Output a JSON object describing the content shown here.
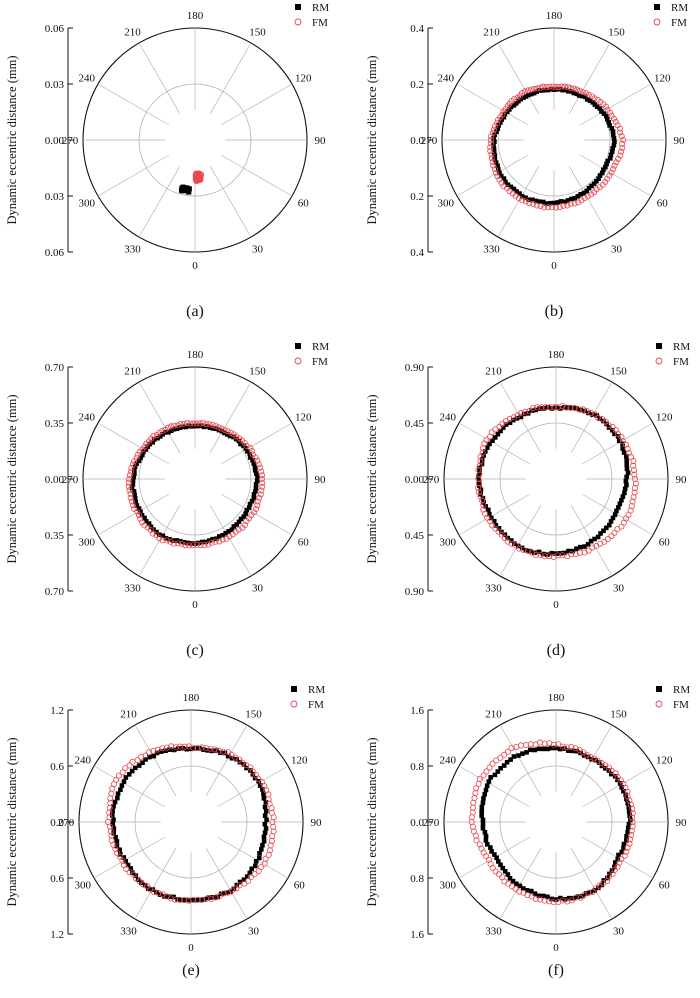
{
  "figure": {
    "legend_rm": "RM",
    "legend_fm": "FM",
    "rm_color": "#000000",
    "fm_color": "#e8474d",
    "ring_color": "#b4b4b4",
    "axis_color": "#111111"
  },
  "chart_data": [
    {
      "type": "scatter",
      "panel_label": "(a)",
      "ylabel": "Dynamic eccentric distance (mm)",
      "y_ticks": [
        "0.06",
        "0.03",
        "0.00",
        "0.03",
        "0.06"
      ],
      "radial_max": 0.06,
      "angle_labels": [
        "0",
        "30",
        "60",
        "90",
        "120",
        "150",
        "180",
        "210",
        "240",
        "270",
        "300",
        "330"
      ],
      "angle_zero_at": "bottom",
      "angle_direction": "counterclockwise",
      "legend": [
        "RM",
        "FM"
      ],
      "legend_position": "top-right",
      "series": [
        {
          "name": "RM",
          "marker": "filled-square",
          "cluster": {
            "center_angle_deg": 349,
            "center_radius": 0.027,
            "spread": 0.0025
          }
        },
        {
          "name": "FM",
          "marker": "open-circle",
          "cluster": {
            "center_angle_deg": 6,
            "center_radius": 0.02,
            "spread": 0.004
          }
        }
      ]
    },
    {
      "type": "scatter",
      "panel_label": "(b)",
      "ylabel": "Dynamic eccentric distance (mm)",
      "y_ticks": [
        "0.4",
        "0.2",
        "0.0",
        "0.2",
        "0.4"
      ],
      "radial_max": 0.4,
      "angle_labels": [
        "0",
        "30",
        "60",
        "90",
        "120",
        "150",
        "180",
        "210",
        "240",
        "270",
        "300",
        "330"
      ],
      "angle_zero_at": "bottom",
      "angle_direction": "counterclockwise",
      "legend": [
        "RM",
        "FM"
      ],
      "legend_position": "top-right",
      "series": [
        {
          "name": "RM",
          "marker": "filled-square",
          "profile": {
            "angle_deg": [
              0,
              30,
              60,
              90,
              120,
              150,
              180,
              210,
              240,
              270,
              300,
              330
            ],
            "radius": [
              0.225,
              0.215,
              0.205,
              0.215,
              0.2,
              0.185,
              0.18,
              0.185,
              0.195,
              0.215,
              0.225,
              0.23
            ]
          }
        },
        {
          "name": "FM",
          "marker": "open-circle",
          "profile": {
            "angle_deg": [
              0,
              30,
              60,
              90,
              120,
              150,
              180,
              210,
              240,
              270,
              300,
              330
            ],
            "radius": [
              0.24,
              0.235,
              0.235,
              0.245,
              0.22,
              0.2,
              0.19,
              0.2,
              0.205,
              0.225,
              0.24,
              0.245
            ]
          }
        }
      ]
    },
    {
      "type": "scatter",
      "panel_label": "(c)",
      "ylabel": "Dynamic eccentric distance (mm)",
      "y_ticks": [
        "0.70",
        "0.35",
        "0.00",
        "0.35",
        "0.70"
      ],
      "radial_max": 0.7,
      "angle_labels": [
        "0",
        "30",
        "60",
        "90",
        "120",
        "150",
        "180",
        "210",
        "240",
        "270",
        "300",
        "330"
      ],
      "angle_zero_at": "bottom",
      "angle_direction": "counterclockwise",
      "legend": [
        "RM",
        "FM"
      ],
      "legend_position": "top-right",
      "series": [
        {
          "name": "RM",
          "marker": "filled-square",
          "profile": {
            "angle_deg": [
              0,
              30,
              60,
              90,
              120,
              150,
              180,
              210,
              240,
              270,
              300,
              330
            ],
            "radius": [
              0.4,
              0.39,
              0.38,
              0.39,
              0.37,
              0.34,
              0.33,
              0.34,
              0.36,
              0.39,
              0.4,
              0.41
            ]
          }
        },
        {
          "name": "FM",
          "marker": "open-circle",
          "profile": {
            "angle_deg": [
              0,
              30,
              60,
              90,
              120,
              150,
              180,
              210,
              240,
              270,
              300,
              330
            ],
            "radius": [
              0.41,
              0.42,
              0.42,
              0.42,
              0.39,
              0.36,
              0.35,
              0.36,
              0.38,
              0.41,
              0.42,
              0.43
            ]
          }
        }
      ]
    },
    {
      "type": "scatter",
      "panel_label": "(d)",
      "ylabel": "Dynamic eccentric distance (mm)",
      "y_ticks": [
        "0.90",
        "0.45",
        "0.00",
        "0.45",
        "0.90"
      ],
      "radial_max": 0.9,
      "angle_labels": [
        "0",
        "30",
        "60",
        "90",
        "120",
        "150",
        "180",
        "210",
        "240",
        "270",
        "300",
        "330"
      ],
      "angle_zero_at": "bottom",
      "angle_direction": "counterclockwise",
      "legend": [
        "RM",
        "FM"
      ],
      "legend_position": "top-right",
      "series": [
        {
          "name": "RM",
          "marker": "filled-square",
          "profile": {
            "angle_deg": [
              0,
              30,
              60,
              90,
              120,
              150,
              180,
              210,
              240,
              270,
              300,
              330
            ],
            "radius": [
              0.6,
              0.58,
              0.55,
              0.57,
              0.6,
              0.6,
              0.57,
              0.58,
              0.6,
              0.62,
              0.6,
              0.62
            ]
          }
        },
        {
          "name": "FM",
          "marker": "open-circle",
          "profile": {
            "angle_deg": [
              0,
              30,
              60,
              90,
              120,
              150,
              180,
              210,
              240,
              270,
              300,
              330
            ],
            "radius": [
              0.62,
              0.63,
              0.65,
              0.64,
              0.62,
              0.6,
              0.58,
              0.6,
              0.64,
              0.62,
              0.63,
              0.63
            ]
          }
        }
      ]
    },
    {
      "type": "scatter",
      "panel_label": "(e)",
      "ylabel": "Dynamic eccentric distance (mm)",
      "y_ticks": [
        "1.2",
        "0.6",
        "0.0",
        "0.6",
        "1.2"
      ],
      "radial_max": 1.2,
      "angle_labels": [
        "0",
        "30",
        "60",
        "90",
        "120",
        "150",
        "180",
        "210",
        "240",
        "270",
        "300",
        "330"
      ],
      "angle_zero_at": "bottom",
      "angle_direction": "counterclockwise",
      "legend": [
        "RM",
        "FM"
      ],
      "legend_position": "top-right",
      "series": [
        {
          "name": "RM",
          "marker": "filled-square",
          "profile": {
            "angle_deg": [
              0,
              30,
              60,
              90,
              120,
              150,
              180,
              210,
              240,
              270,
              300,
              330
            ],
            "radius": [
              0.83,
              0.85,
              0.82,
              0.8,
              0.84,
              0.82,
              0.78,
              0.82,
              0.84,
              0.84,
              0.82,
              0.84
            ]
          }
        },
        {
          "name": "FM",
          "marker": "open-circle",
          "profile": {
            "angle_deg": [
              0,
              30,
              60,
              90,
              120,
              150,
              180,
              210,
              240,
              270,
              300,
              330
            ],
            "radius": [
              0.84,
              0.85,
              0.9,
              0.88,
              0.87,
              0.84,
              0.8,
              0.86,
              0.92,
              0.88,
              0.85,
              0.84
            ]
          }
        }
      ]
    },
    {
      "type": "scatter",
      "panel_label": "(f)",
      "ylabel": "Dynamic eccentric distance (mm)",
      "y_ticks": [
        "1.6",
        "0.8",
        "0.0",
        "0.8",
        "1.6"
      ],
      "radial_max": 1.6,
      "angle_labels": [
        "0",
        "30",
        "60",
        "90",
        "120",
        "150",
        "180",
        "210",
        "240",
        "270",
        "300",
        "330"
      ],
      "angle_zero_at": "bottom",
      "angle_direction": "counterclockwise",
      "legend": [
        "RM",
        "FM"
      ],
      "legend_position": "top-right",
      "series": [
        {
          "name": "RM",
          "marker": "filled-square",
          "profile": {
            "angle_deg": [
              0,
              30,
              60,
              90,
              120,
              150,
              180,
              210,
              240,
              270,
              300,
              330
            ],
            "radius": [
              1.1,
              1.12,
              1.02,
              1.05,
              1.06,
              1.04,
              1.05,
              1.1,
              1.12,
              1.05,
              1.0,
              1.04
            ]
          }
        },
        {
          "name": "FM",
          "marker": "open-circle",
          "profile": {
            "angle_deg": [
              0,
              30,
              60,
              90,
              120,
              150,
              180,
              210,
              240,
              270,
              300,
              330
            ],
            "radius": [
              1.14,
              1.12,
              1.08,
              1.1,
              1.1,
              1.06,
              1.1,
              1.22,
              1.24,
              1.2,
              1.1,
              1.12
            ]
          }
        }
      ]
    }
  ]
}
